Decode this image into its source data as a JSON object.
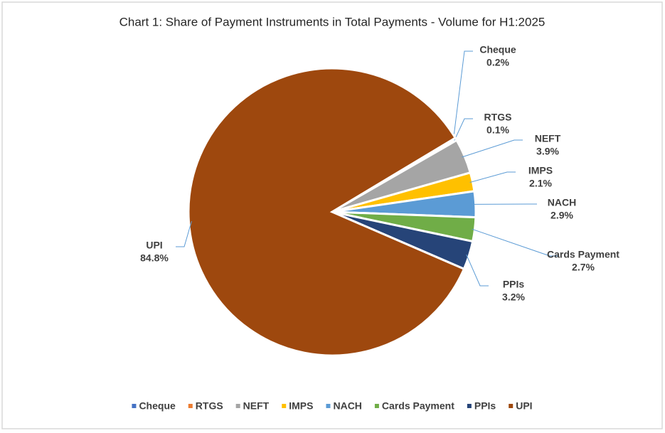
{
  "chart_data": {
    "type": "pie",
    "title": "Chart 1: Share of Payment Instruments in Total Payments - Volume for H1:2025",
    "categories": [
      "Cheque",
      "RTGS",
      "NEFT",
      "IMPS",
      "NACH",
      "Cards Payment",
      "PPIs",
      "UPI"
    ],
    "values": [
      0.2,
      0.1,
      3.9,
      2.1,
      2.9,
      2.7,
      3.2,
      84.8
    ],
    "value_labels": [
      "0.2%",
      "0.1%",
      "3.9%",
      "2.1%",
      "2.9%",
      "2.7%",
      "3.2%",
      "84.8%"
    ],
    "colors": [
      "#4472c4",
      "#ed7d31",
      "#a5a5a5",
      "#ffc000",
      "#5b9bd5",
      "#70ad47",
      "#264478",
      "#9e480e"
    ],
    "legend": "bottom"
  }
}
